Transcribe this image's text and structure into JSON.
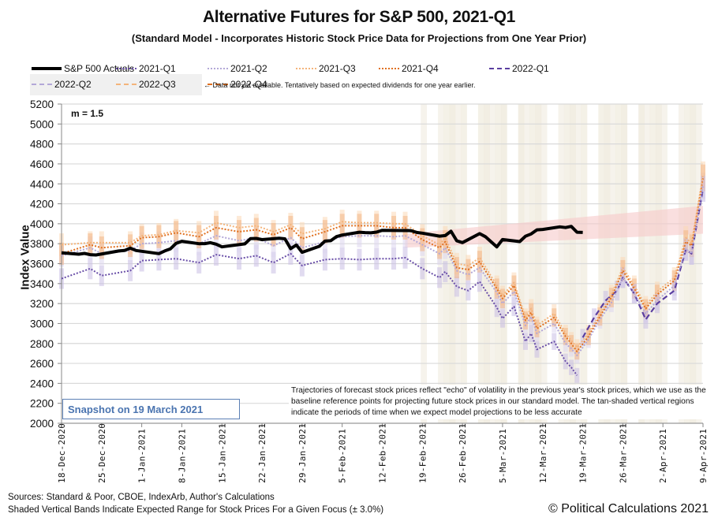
{
  "chart_data": {
    "type": "line",
    "title": "Alternative Futures for S&P 500, 2021-Q1",
    "subtitle": "(Standard Model - Incorporates Historic Stock Price Data for Projections from One Year Prior)",
    "xlabel": "",
    "ylabel": "Index Value",
    "ylim": [
      2000,
      5200
    ],
    "yticks": [
      2000,
      2200,
      2400,
      2600,
      2800,
      3000,
      3200,
      3400,
      3600,
      3800,
      4000,
      4200,
      4400,
      4600,
      4800,
      5000,
      5200
    ],
    "grid": true,
    "x_start": "18-Dec-2020",
    "x_end_day": 112,
    "xticks": [
      {
        "day": 0,
        "label": "18-Dec-2020"
      },
      {
        "day": 7,
        "label": "25-Dec-2020"
      },
      {
        "day": 14,
        "label": "1-Jan-2021"
      },
      {
        "day": 21,
        "label": "8-Jan-2021"
      },
      {
        "day": 28,
        "label": "15-Jan-2021"
      },
      {
        "day": 35,
        "label": "22-Jan-2021"
      },
      {
        "day": 42,
        "label": "29-Jan-2021"
      },
      {
        "day": 49,
        "label": "5-Feb-2021"
      },
      {
        "day": 56,
        "label": "12-Feb-2021"
      },
      {
        "day": 63,
        "label": "19-Feb-2021"
      },
      {
        "day": 70,
        "label": "26-Feb-2021"
      },
      {
        "day": 77,
        "label": "5-Mar-2021"
      },
      {
        "day": 84,
        "label": "12-Mar-2021"
      },
      {
        "day": 91,
        "label": "19-Mar-2021"
      },
      {
        "day": 98,
        "label": "26-Mar-2021"
      },
      {
        "day": 105,
        "label": "2-Apr-2021"
      },
      {
        "day": 112,
        "label": "9-Apr-2021"
      }
    ],
    "legend": {
      "placement": "top",
      "entries": [
        {
          "name": "S&P 500 Actuals",
          "color": "#000000",
          "style": "solid-thick"
        },
        {
          "name": "2021-Q1",
          "color": "#6a4fa8",
          "style": "dotted"
        },
        {
          "name": "2021-Q2",
          "color": "#b3a8d8",
          "style": "dotted"
        },
        {
          "name": "2021-Q3",
          "color": "#f4b47a",
          "style": "dotted"
        },
        {
          "name": "2021-Q4",
          "color": "#e0701f",
          "style": "dotted"
        },
        {
          "name": "2022-Q1",
          "color": "#5a3ea0",
          "style": "dashed"
        },
        {
          "name": "2022-Q2",
          "color": "#b3a8d8",
          "style": "dashed"
        },
        {
          "name": "2022-Q3",
          "color": "#f4b47a",
          "style": "dashed"
        },
        {
          "name": "2022-Q4",
          "color": "#e0701f",
          "style": "dashed"
        }
      ],
      "note": "← Data not yet available.  Tentatively based on expected dividends for one year earlier."
    },
    "annotations": {
      "m_label": "m = 1.5",
      "snapshot": "Snapshot on 19 March 2021",
      "note": "Trajectories of forecast stock prices reflect \"echo\" of volatility in  the previous year's stock prices, which we use as the baseline reference points for projecting future stock prices in our standard model.   The tan-shaded vertical regions indicate the periods of time when we expect model projections to be less accurate"
    },
    "redzone": {
      "start_day": 60,
      "end_day": 112,
      "lower_start": 3760,
      "lower_end": 3900,
      "upper_start": 3900,
      "upper_end": 4180
    },
    "tan_regions": [
      [
        63,
        112
      ]
    ],
    "band_pct": 3.0,
    "series": [
      {
        "name": "S&P 500 Actuals",
        "points": [
          [
            0,
            3709
          ],
          [
            3,
            3695
          ],
          [
            4,
            3703
          ],
          [
            5,
            3690
          ],
          [
            6,
            3687
          ],
          [
            10,
            3727
          ],
          [
            11,
            3732
          ],
          [
            12,
            3756
          ],
          [
            13,
            3732
          ],
          [
            17,
            3700
          ],
          [
            18,
            3727
          ],
          [
            19,
            3748
          ],
          [
            20,
            3804
          ],
          [
            21,
            3824
          ],
          [
            24,
            3800
          ],
          [
            25,
            3801
          ],
          [
            26,
            3810
          ],
          [
            27,
            3795
          ],
          [
            28,
            3768
          ],
          [
            32,
            3798
          ],
          [
            33,
            3851
          ],
          [
            34,
            3853
          ],
          [
            35,
            3841
          ],
          [
            38,
            3855
          ],
          [
            39,
            3849
          ],
          [
            40,
            3750
          ],
          [
            41,
            3787
          ],
          [
            42,
            3714
          ],
          [
            45,
            3774
          ],
          [
            46,
            3826
          ],
          [
            47,
            3830
          ],
          [
            48,
            3871
          ],
          [
            49,
            3887
          ],
          [
            52,
            3915
          ],
          [
            53,
            3911
          ],
          [
            54,
            3909
          ],
          [
            55,
            3916
          ],
          [
            56,
            3934
          ],
          [
            60,
            3932
          ],
          [
            61,
            3931
          ],
          [
            62,
            3913
          ],
          [
            63,
            3906
          ],
          [
            66,
            3876
          ],
          [
            67,
            3881
          ],
          [
            68,
            3925
          ],
          [
            69,
            3829
          ],
          [
            70,
            3811
          ],
          [
            73,
            3901
          ],
          [
            74,
            3870
          ],
          [
            75,
            3820
          ],
          [
            76,
            3768
          ],
          [
            77,
            3842
          ],
          [
            80,
            3821
          ],
          [
            81,
            3875
          ],
          [
            82,
            3898
          ],
          [
            83,
            3939
          ],
          [
            84,
            3943
          ],
          [
            87,
            3969
          ],
          [
            88,
            3962
          ],
          [
            89,
            3974
          ],
          [
            90,
            3915
          ],
          [
            91,
            3913
          ]
        ]
      },
      {
        "name": "2021-Q1",
        "points": [
          [
            0,
            3450
          ],
          [
            5,
            3550
          ],
          [
            7,
            3480
          ],
          [
            12,
            3530
          ],
          [
            14,
            3630
          ],
          [
            17,
            3640
          ],
          [
            20,
            3650
          ],
          [
            24,
            3610
          ],
          [
            27,
            3690
          ],
          [
            31,
            3650
          ],
          [
            34,
            3680
          ],
          [
            37,
            3610
          ],
          [
            40,
            3700
          ],
          [
            42,
            3580
          ],
          [
            46,
            3640
          ],
          [
            49,
            3650
          ],
          [
            52,
            3640
          ],
          [
            55,
            3650
          ],
          [
            58,
            3650
          ],
          [
            60,
            3660
          ],
          [
            63,
            3550
          ],
          [
            66,
            3460
          ],
          [
            67,
            3520
          ],
          [
            69,
            3370
          ],
          [
            71,
            3330
          ],
          [
            73,
            3420
          ],
          [
            76,
            3160
          ],
          [
            77,
            3050
          ],
          [
            79,
            3170
          ],
          [
            81,
            2820
          ],
          [
            82,
            2900
          ],
          [
            83,
            2740
          ],
          [
            86,
            2820
          ],
          [
            88,
            2620
          ],
          [
            89,
            2560
          ],
          [
            90,
            2480
          ]
        ]
      },
      {
        "name": "2021-Q2",
        "points": [
          [
            0,
            3680
          ],
          [
            5,
            3760
          ],
          [
            7,
            3700
          ],
          [
            12,
            3730
          ],
          [
            14,
            3800
          ],
          [
            17,
            3810
          ],
          [
            20,
            3830
          ],
          [
            24,
            3800
          ],
          [
            27,
            3880
          ],
          [
            31,
            3830
          ],
          [
            34,
            3860
          ],
          [
            37,
            3780
          ],
          [
            40,
            3860
          ],
          [
            42,
            3760
          ],
          [
            46,
            3820
          ],
          [
            49,
            3870
          ],
          [
            52,
            3880
          ],
          [
            55,
            3880
          ],
          [
            58,
            3870
          ],
          [
            60,
            3880
          ],
          [
            63,
            3790
          ],
          [
            66,
            3700
          ],
          [
            67,
            3760
          ],
          [
            69,
            3530
          ],
          [
            71,
            3490
          ],
          [
            73,
            3560
          ],
          [
            76,
            3310
          ],
          [
            77,
            3200
          ],
          [
            79,
            3320
          ],
          [
            81,
            2980
          ],
          [
            82,
            3070
          ],
          [
            83,
            2900
          ],
          [
            86,
            3000
          ],
          [
            88,
            2800
          ],
          [
            89,
            2750
          ],
          [
            90,
            2680
          ],
          [
            92,
            2840
          ],
          [
            94,
            3040
          ],
          [
            96,
            3210
          ],
          [
            98,
            3460
          ],
          [
            100,
            3300
          ],
          [
            102,
            3100
          ],
          [
            104,
            3230
          ],
          [
            107,
            3380
          ],
          [
            109,
            3750
          ],
          [
            110,
            3700
          ],
          [
            112,
            4380
          ]
        ]
      },
      {
        "name": "2021-Q3",
        "points": [
          [
            0,
            3790
          ],
          [
            5,
            3810
          ],
          [
            7,
            3810
          ],
          [
            12,
            3810
          ],
          [
            14,
            3880
          ],
          [
            17,
            3890
          ],
          [
            20,
            3930
          ],
          [
            24,
            3910
          ],
          [
            27,
            4010
          ],
          [
            31,
            3960
          ],
          [
            34,
            3980
          ],
          [
            37,
            3920
          ],
          [
            40,
            3990
          ],
          [
            42,
            3900
          ],
          [
            46,
            3950
          ],
          [
            49,
            4020
          ],
          [
            52,
            4010
          ],
          [
            55,
            4010
          ],
          [
            58,
            4000
          ],
          [
            60,
            4000
          ],
          [
            63,
            3880
          ],
          [
            66,
            3790
          ],
          [
            67,
            3860
          ],
          [
            69,
            3600
          ],
          [
            71,
            3580
          ],
          [
            73,
            3660
          ],
          [
            76,
            3380
          ],
          [
            77,
            3280
          ],
          [
            79,
            3410
          ],
          [
            81,
            3060
          ],
          [
            82,
            3150
          ],
          [
            83,
            2980
          ],
          [
            86,
            3100
          ],
          [
            88,
            2900
          ],
          [
            89,
            2830
          ],
          [
            90,
            2760
          ],
          [
            92,
            2900
          ],
          [
            94,
            3100
          ],
          [
            96,
            3290
          ],
          [
            98,
            3560
          ],
          [
            100,
            3380
          ],
          [
            102,
            3180
          ],
          [
            104,
            3320
          ],
          [
            107,
            3460
          ],
          [
            109,
            3860
          ],
          [
            110,
            3800
          ],
          [
            112,
            4490
          ]
        ]
      },
      {
        "name": "2021-Q4",
        "points": [
          [
            0,
            3700
          ],
          [
            5,
            3790
          ],
          [
            7,
            3760
          ],
          [
            12,
            3780
          ],
          [
            14,
            3860
          ],
          [
            17,
            3870
          ],
          [
            20,
            3910
          ],
          [
            24,
            3870
          ],
          [
            27,
            3960
          ],
          [
            31,
            3920
          ],
          [
            34,
            3940
          ],
          [
            37,
            3890
          ],
          [
            40,
            3960
          ],
          [
            42,
            3850
          ],
          [
            46,
            3920
          ],
          [
            49,
            3980
          ],
          [
            52,
            3980
          ],
          [
            55,
            3980
          ],
          [
            58,
            3960
          ],
          [
            60,
            3960
          ],
          [
            63,
            3840
          ],
          [
            66,
            3760
          ],
          [
            67,
            3820
          ],
          [
            69,
            3560
          ],
          [
            71,
            3540
          ],
          [
            73,
            3620
          ],
          [
            76,
            3350
          ],
          [
            77,
            3250
          ],
          [
            79,
            3380
          ],
          [
            81,
            3030
          ],
          [
            82,
            3110
          ],
          [
            83,
            2950
          ],
          [
            86,
            3060
          ],
          [
            88,
            2870
          ],
          [
            89,
            2800
          ],
          [
            90,
            2720
          ],
          [
            92,
            2870
          ],
          [
            94,
            3070
          ],
          [
            96,
            3260
          ],
          [
            98,
            3530
          ],
          [
            100,
            3350
          ],
          [
            102,
            3150
          ],
          [
            104,
            3290
          ],
          [
            107,
            3430
          ],
          [
            109,
            3820
          ],
          [
            110,
            3780
          ],
          [
            112,
            4460
          ]
        ]
      },
      {
        "name": "2022-Q1",
        "points": [
          [
            91,
            2860
          ],
          [
            93,
            3060
          ],
          [
            95,
            3230
          ],
          [
            97,
            3330
          ],
          [
            98,
            3460
          ],
          [
            100,
            3300
          ],
          [
            102,
            3040
          ],
          [
            104,
            3200
          ],
          [
            107,
            3330
          ],
          [
            109,
            3740
          ],
          [
            110,
            3700
          ],
          [
            112,
            4350
          ]
        ]
      }
    ]
  },
  "footer": {
    "sources": "Sources: Standard & Poor, CBOE, IndexArb, Author's Calculations",
    "bands": "Shaded Vertical Bands Indicate Expected Range for Stock Prices For a Given Focus (± 3.0%)",
    "copyright": "© Political Calculations 2021"
  }
}
